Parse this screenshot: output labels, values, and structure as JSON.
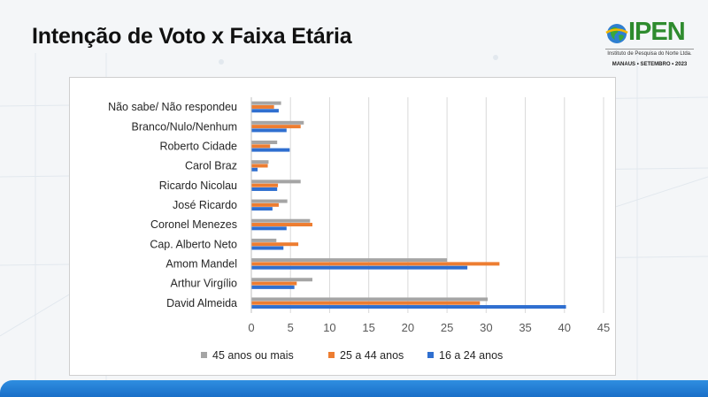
{
  "slide": {
    "title": "Intenção de Voto x Faixa Etária"
  },
  "logo": {
    "word": "IPEN",
    "subtitle": "Instituto de Pesquisa do Norte Ltda.",
    "date_line": "MANAUS • SETEMBRO • 2023"
  },
  "colors": {
    "series_45_plus": "#a5a5a5",
    "series_25_44": "#ed7d31",
    "series_16_24": "#2f6fd0",
    "bottom_band": "#1f7fd8",
    "title": "#111111"
  },
  "chart_data": {
    "type": "bar",
    "orientation": "horizontal",
    "title": "",
    "xlabel": "",
    "ylabel": "",
    "xlim": [
      0,
      45
    ],
    "ticks": [
      0,
      5,
      10,
      15,
      20,
      25,
      30,
      35,
      40,
      45
    ],
    "grid": true,
    "legend_position": "bottom",
    "categories": [
      "Não sabe/ Não respondeu",
      "Branco/Nulo/Nenhum",
      "Roberto Cidade",
      "Carol Braz",
      "Ricardo Nicolau",
      "José Ricardo",
      "Coronel Menezes",
      "Cap. Alberto Neto",
      "Amom Mandel",
      "Arthur Virgílio",
      "David Almeida"
    ],
    "series": [
      {
        "name": "45 anos ou mais",
        "color": "#a5a5a5",
        "values": [
          3.8,
          6.7,
          3.3,
          2.2,
          6.3,
          4.6,
          7.5,
          3.2,
          25.0,
          7.8,
          30.2
        ]
      },
      {
        "name": "25 a 44 anos",
        "color": "#ed7d31",
        "values": [
          2.9,
          6.3,
          2.4,
          2.1,
          3.4,
          3.5,
          7.8,
          6.0,
          31.7,
          5.8,
          29.2
        ]
      },
      {
        "name": "16 a 24 anos",
        "color": "#2f6fd0",
        "values": [
          3.5,
          4.5,
          4.9,
          0.8,
          3.3,
          2.7,
          4.5,
          4.1,
          27.6,
          5.5,
          40.2
        ]
      }
    ]
  }
}
